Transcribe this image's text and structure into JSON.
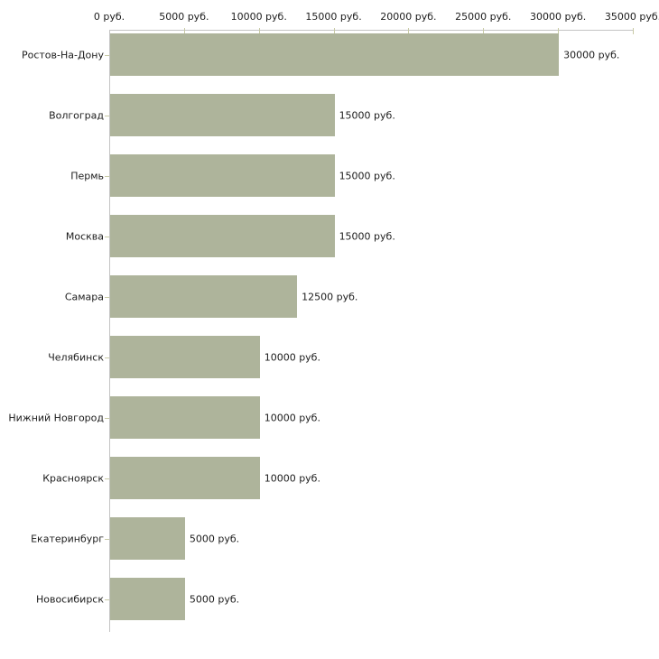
{
  "chart_data": {
    "type": "bar",
    "orientation": "horizontal",
    "title": "",
    "xlabel": "",
    "ylabel": "",
    "categories": [
      "Ростов-На-Дону",
      "Волгоград",
      "Пермь",
      "Москва",
      "Самара",
      "Челябинск",
      "Нижний Новгород",
      "Красноярск",
      "Екатеринбург",
      "Новосибирск"
    ],
    "values": [
      30000,
      15000,
      15000,
      15000,
      12500,
      10000,
      10000,
      10000,
      5000,
      5000
    ],
    "value_labels": [
      "30000 руб.",
      "15000 руб.",
      "15000 руб.",
      "15000 руб.",
      "12500 руб.",
      "10000 руб.",
      "10000 руб.",
      "10000 руб.",
      "5000 руб.",
      "5000 руб."
    ],
    "x_ticks": [
      0,
      5000,
      10000,
      15000,
      20000,
      25000,
      30000,
      35000
    ],
    "x_tick_labels": [
      "0 руб.",
      "5000 руб.",
      "10000 руб.",
      "15000 руб.",
      "20000 руб.",
      "25000 руб.",
      "30000 руб.",
      "35000 руб."
    ],
    "xlim": [
      0,
      35000
    ],
    "unit": "руб.",
    "grid": false,
    "legend": false,
    "colors": {
      "bar_fill": "#aeb49b",
      "axis_line": "#c4c4c4",
      "tick_mark": "#c8caa6",
      "text": "#1c1c1c",
      "background": "#ffffff"
    }
  }
}
